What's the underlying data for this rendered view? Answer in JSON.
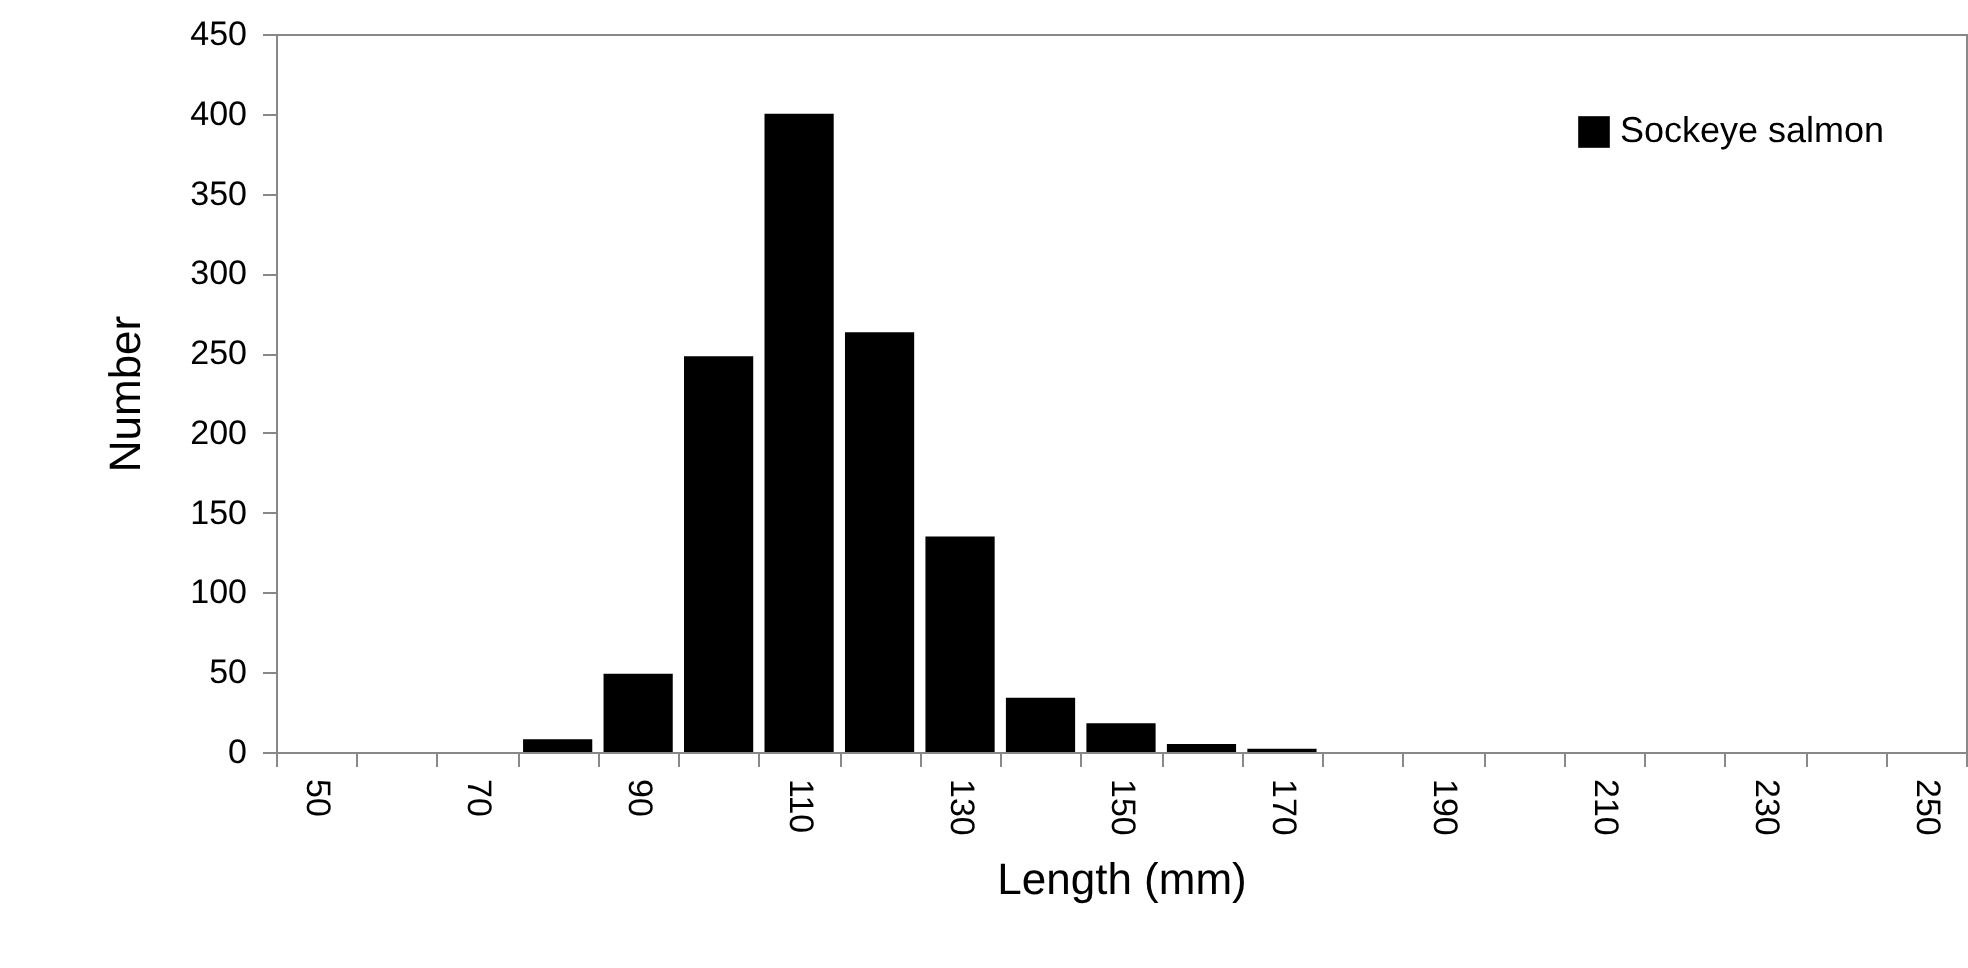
{
  "chart_data": {
    "type": "bar",
    "xlabel": "Length (mm)",
    "ylabel": "Number",
    "categories": [
      "50",
      null,
      "70",
      null,
      "90",
      null,
      "110",
      null,
      "130",
      null,
      "150",
      null,
      "170",
      null,
      "190",
      null,
      "210",
      null,
      "230",
      null,
      "250"
    ],
    "series": [
      {
        "name": "Sockeye salmon",
        "color": "#000000",
        "values": [
          0,
          0,
          0,
          8,
          49,
          248,
          400,
          263,
          135,
          34,
          18,
          5,
          2,
          0,
          0,
          0,
          0,
          0,
          0,
          0,
          0
        ]
      }
    ],
    "ylim": [
      0,
      450
    ],
    "yticks": [
      0,
      50,
      100,
      150,
      200,
      250,
      300,
      350,
      400,
      450
    ],
    "grid": false,
    "legend": "top right"
  }
}
